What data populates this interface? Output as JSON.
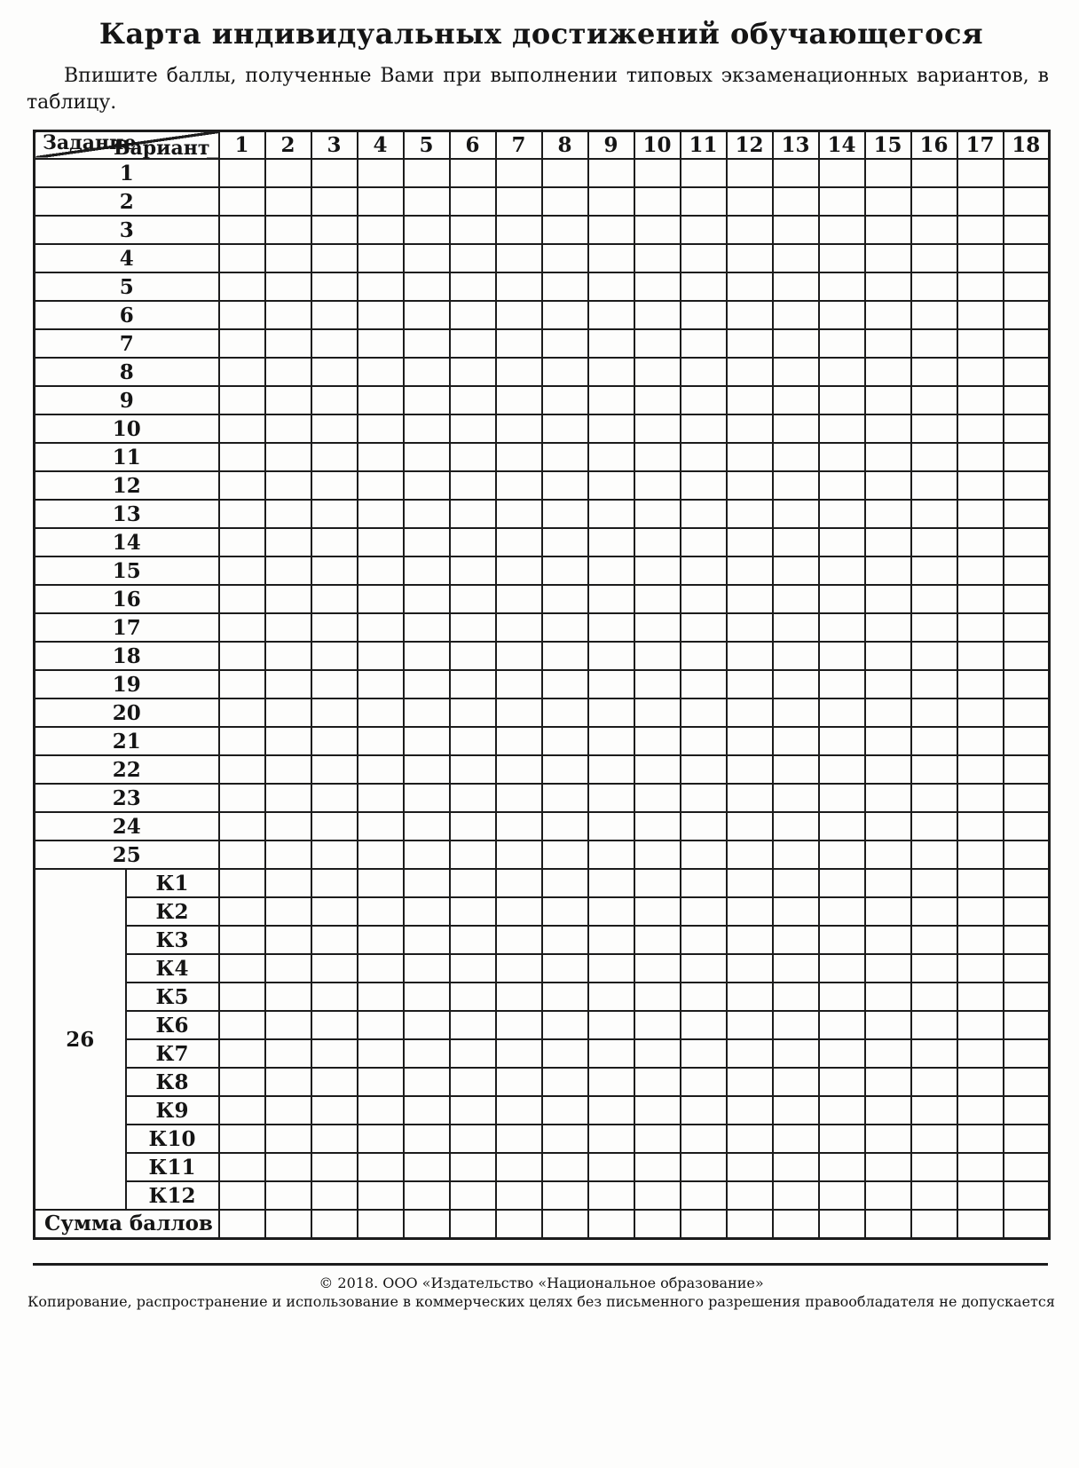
{
  "page": {
    "title": "Карта индивидуальных достижений обучающегося",
    "intro": "Впишите баллы, полученные Вами при выполнении типовых экзаменационных вариантов, в таблицу."
  },
  "table": {
    "corner": {
      "top_right": "Вариант",
      "bottom_left": "Задание"
    },
    "variant_columns": [
      "1",
      "2",
      "3",
      "4",
      "5",
      "6",
      "7",
      "8",
      "9",
      "10",
      "11",
      "12",
      "13",
      "14",
      "15",
      "16",
      "17",
      "18"
    ],
    "task_rows": [
      "1",
      "2",
      "3",
      "4",
      "5",
      "6",
      "7",
      "8",
      "9",
      "10",
      "11",
      "12",
      "13",
      "14",
      "15",
      "16",
      "17",
      "18",
      "19",
      "20",
      "21",
      "22",
      "23",
      "24",
      "25"
    ],
    "task26": {
      "label": "26",
      "criteria": [
        "К1",
        "К2",
        "К3",
        "К4",
        "К5",
        "К6",
        "К7",
        "К8",
        "К9",
        "К10",
        "К11",
        "К12"
      ]
    },
    "sum_row_label": "Сумма баллов",
    "cell_value_default": ""
  },
  "footer": {
    "line1": "© 2018. ООО «Издательство «Национальное образование»",
    "line2": "Копирование, распространение и использование в коммерческих целях без письменного разрешения правообладателя не допускается"
  },
  "colors": {
    "line": "#1c1c1c",
    "text": "#151515",
    "background": "#fdfdfc"
  }
}
